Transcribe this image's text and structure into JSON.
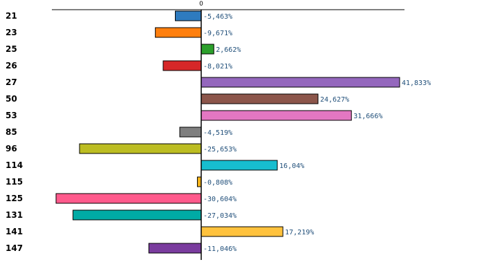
{
  "chart_data": {
    "type": "bar",
    "orientation": "horizontal",
    "title": "",
    "xlabel": "",
    "ylabel": "",
    "zero_tick_label": "0",
    "xlim": [
      -36.5,
      54.5
    ],
    "categories": [
      "21",
      "23",
      "25",
      "26",
      "27",
      "50",
      "53",
      "85",
      "96",
      "114",
      "115",
      "125",
      "131",
      "141",
      "147"
    ],
    "values": [
      -5.463,
      -9.671,
      2.662,
      -8.021,
      41.833,
      24.627,
      31.666,
      -4.519,
      -25.653,
      16.04,
      -0.808,
      -30.604,
      -27.034,
      17.219,
      -11.046
    ],
    "value_labels": [
      "-5,463%",
      "-9,671%",
      "2,662%",
      "-8,021%",
      "41,833%",
      "24,627%",
      "31,666%",
      "-4,519%",
      "-25,653%",
      "16,04%",
      "-0,808%",
      "-30,604%",
      "-27,034%",
      "17,219%",
      "-11,046%"
    ],
    "colors": [
      "#2e7bbf",
      "#ff7f0e",
      "#2ca02c",
      "#d62728",
      "#9467bd",
      "#8c564b",
      "#e377c2",
      "#7f7f7f",
      "#bcbd22",
      "#17becf",
      "#f5b31b",
      "#ff5a8c",
      "#00aba5",
      "#ffc23d",
      "#7a3c9e"
    ],
    "highlight_category": "147",
    "highlight_color": "#e00000"
  }
}
